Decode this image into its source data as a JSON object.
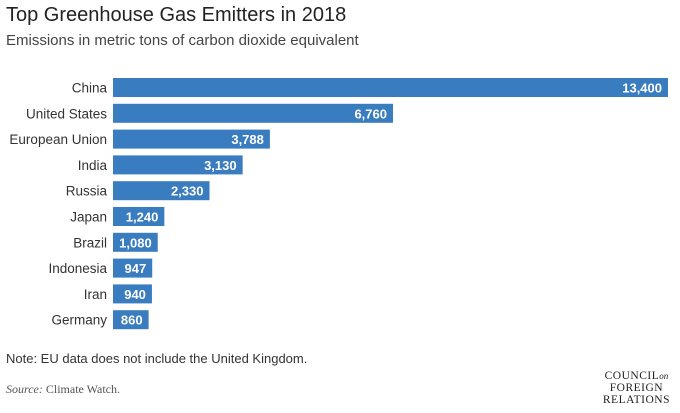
{
  "header": {
    "title": "Top Greenhouse Gas Emitters in 2018",
    "subtitle": "Emissions in metric tons of carbon dioxide equivalent"
  },
  "footer": {
    "note": "Note: EU data does not include the United Kingdom.",
    "source_label": "Source:",
    "source_text": "Climate Watch.",
    "logo_line1": "COUNCIL",
    "logo_on": "on",
    "logo_line2": "FOREIGN",
    "logo_line3": "RELATIONS"
  },
  "colors": {
    "bar": "#3a7cc0"
  },
  "chart_data": {
    "type": "bar",
    "orientation": "horizontal",
    "title": "Top Greenhouse Gas Emitters in 2018",
    "subtitle": "Emissions in metric tons of carbon dioxide equivalent",
    "categories": [
      "China",
      "United States",
      "European Union",
      "India",
      "Russia",
      "Japan",
      "Brazil",
      "Indonesia",
      "Iran",
      "Germany"
    ],
    "values": [
      13400,
      6760,
      3788,
      3130,
      2330,
      1240,
      1080,
      947,
      940,
      860
    ],
    "value_labels": [
      "13,400",
      "6,760",
      "3,788",
      "3,130",
      "2,330",
      "1,240",
      "1,080",
      "947",
      "940",
      "860"
    ],
    "xlabel": "",
    "ylabel": "",
    "xlim": [
      0,
      13400
    ],
    "grid": false,
    "legend": "none"
  }
}
